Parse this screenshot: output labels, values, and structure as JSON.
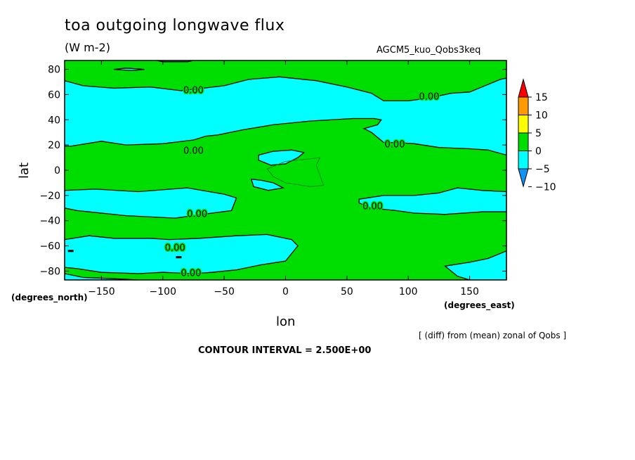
{
  "header": {
    "title": "toa outgoing longwave flux",
    "units": "(W m-2)",
    "run_name": "AGCM5_kuo_Qobs3keq"
  },
  "footer": {
    "x_axis_unit": "(degrees_east)",
    "y_axis_unit": "(degrees_north)",
    "operation_note": "[ (diff) from (mean) zonal of Qobs ]",
    "contour_interval": "CONTOUR INTERVAL = 2.500E+00"
  },
  "colors": {
    "blue": "#0f94f5",
    "cyan": "#00ffff",
    "green": "#00dd00",
    "yellow": "#ffff00",
    "orange": "#ff9b00",
    "red": "#ff0000"
  },
  "chart_data": {
    "type": "heatmap",
    "style": "filled contour map",
    "xlabel": "lon",
    "ylabel": "lat",
    "xlim": [
      -180,
      180
    ],
    "ylim": [
      -87,
      87
    ],
    "x_ticks": [
      -150,
      -100,
      -50,
      0,
      50,
      100,
      150
    ],
    "y_ticks": [
      80,
      60,
      40,
      20,
      0,
      -20,
      -40,
      -60,
      -80
    ],
    "contour_interval": 2.5,
    "colorbar": {
      "levels": [
        -10,
        -5,
        0,
        5,
        10,
        15
      ],
      "colors": [
        "#0f94f5",
        "#00ffff",
        "#00dd00",
        "#ffff00",
        "#ff9b00",
        "#ff0000"
      ],
      "position": "right"
    },
    "contour_labels": [
      {
        "text": "0.00",
        "lon": -75,
        "lat": 63
      },
      {
        "text": "0.00",
        "lon": 117,
        "lat": 58
      },
      {
        "text": "0.00",
        "lon": 89,
        "lat": 20
      },
      {
        "text": "0.00",
        "lon": -75,
        "lat": 15
      },
      {
        "text": "0.00",
        "lon": 71,
        "lat": -29
      },
      {
        "text": "0.00",
        "lon": -72,
        "lat": -35
      },
      {
        "text": "0.00",
        "lon": -90,
        "lat": -62
      },
      {
        "text": "0.00",
        "lon": -77,
        "lat": -82
      }
    ],
    "regions": [
      {
        "value_range": [
          0,
          2.5
        ],
        "fill": "green",
        "lon": [
          -180,
          180
        ],
        "lat": [
          -87,
          87
        ],
        "path": [
          [
            -180,
            87
          ],
          [
            180,
            87
          ],
          [
            180,
            -87
          ],
          [
            -180,
            -87
          ]
        ]
      },
      {
        "value_range": [
          -2.5,
          0
        ],
        "fill": "cyan",
        "path": [
          [
            -180,
            71
          ],
          [
            -165,
            67
          ],
          [
            -140,
            65
          ],
          [
            -110,
            66
          ],
          [
            -85,
            63
          ],
          [
            -50,
            67
          ],
          [
            -30,
            72
          ],
          [
            -5,
            74
          ],
          [
            25,
            71
          ],
          [
            50,
            66
          ],
          [
            70,
            61
          ],
          [
            80,
            55
          ],
          [
            100,
            55
          ],
          [
            115,
            57
          ],
          [
            135,
            61
          ],
          [
            150,
            62
          ],
          [
            160,
            66
          ],
          [
            175,
            72
          ],
          [
            180,
            73
          ],
          [
            180,
            12
          ],
          [
            165,
            16
          ],
          [
            150,
            17
          ],
          [
            125,
            18
          ],
          [
            105,
            21
          ],
          [
            90,
            22
          ],
          [
            80,
            22
          ],
          [
            70,
            30
          ],
          [
            64,
            33
          ],
          [
            75,
            36
          ],
          [
            78,
            40
          ],
          [
            72,
            41
          ],
          [
            55,
            41
          ],
          [
            20,
            39
          ],
          [
            -10,
            36
          ],
          [
            -35,
            32
          ],
          [
            -55,
            28
          ],
          [
            -65,
            27
          ],
          [
            -75,
            24
          ],
          [
            -100,
            21
          ],
          [
            -130,
            20
          ],
          [
            -150,
            23
          ],
          [
            -175,
            19
          ],
          [
            -180,
            19
          ]
        ]
      },
      {
        "value_range": [
          -2.5,
          0
        ],
        "fill": "cyan",
        "path": [
          [
            -180,
            -16
          ],
          [
            -155,
            -15
          ],
          [
            -120,
            -17
          ],
          [
            -80,
            -14
          ],
          [
            -50,
            -19
          ],
          [
            -40,
            -22
          ],
          [
            -44,
            -32
          ],
          [
            -60,
            -34
          ],
          [
            -90,
            -38
          ],
          [
            -130,
            -36
          ],
          [
            -170,
            -32
          ],
          [
            -180,
            -30
          ]
        ]
      },
      {
        "value_range": [
          -2.5,
          0
        ],
        "fill": "cyan",
        "path": [
          [
            60,
            -23
          ],
          [
            80,
            -20
          ],
          [
            105,
            -20
          ],
          [
            125,
            -18
          ],
          [
            140,
            -14
          ],
          [
            160,
            -16
          ],
          [
            180,
            -17
          ],
          [
            180,
            -33
          ],
          [
            160,
            -33
          ],
          [
            130,
            -35
          ],
          [
            105,
            -34
          ],
          [
            90,
            -32
          ],
          [
            70,
            -30
          ],
          [
            60,
            -26
          ]
        ]
      },
      {
        "value_range": [
          -2.5,
          0
        ],
        "fill": "cyan",
        "path": [
          [
            -180,
            -55
          ],
          [
            -160,
            -52
          ],
          [
            -140,
            -54
          ],
          [
            -110,
            -54
          ],
          [
            -95,
            -55
          ],
          [
            -70,
            -54
          ],
          [
            -40,
            -52
          ],
          [
            -15,
            -51
          ],
          [
            5,
            -55
          ],
          [
            10,
            -60
          ],
          [
            0,
            -72
          ],
          [
            -20,
            -75
          ],
          [
            -40,
            -79
          ],
          [
            -60,
            -81
          ],
          [
            -75,
            -82
          ],
          [
            -100,
            -81
          ],
          [
            -120,
            -82
          ],
          [
            -150,
            -81
          ],
          [
            -170,
            -78
          ],
          [
            -180,
            -77
          ]
        ]
      },
      {
        "value_range": [
          -2.5,
          0
        ],
        "fill": "cyan",
        "path": [
          [
            -180,
            -87
          ],
          [
            -180,
            -82
          ],
          [
            -165,
            -85
          ],
          [
            -140,
            -86
          ],
          [
            -120,
            -87
          ]
        ]
      },
      {
        "value_range": [
          -2.5,
          0
        ],
        "fill": "cyan",
        "path": [
          [
            130,
            -76
          ],
          [
            150,
            -73
          ],
          [
            165,
            -70
          ],
          [
            180,
            -64
          ],
          [
            180,
            -87
          ],
          [
            150,
            -87
          ],
          [
            140,
            -84
          ]
        ]
      },
      {
        "value_range": [
          -2.5,
          0
        ],
        "fill": "cyan",
        "path": [
          [
            -140,
            80
          ],
          [
            -125,
            79
          ],
          [
            -115,
            80
          ],
          [
            -130,
            81
          ]
        ]
      },
      {
        "value_range": [
          -2.5,
          0
        ],
        "fill": "cyan",
        "path": [
          [
            -105,
            87
          ],
          [
            -100,
            86
          ],
          [
            -80,
            86
          ],
          [
            -75,
            87
          ]
        ]
      },
      {
        "value_range": [
          -2.5,
          0
        ],
        "fill": "cyan",
        "path": [
          [
            -22,
            12
          ],
          [
            -10,
            15
          ],
          [
            5,
            16
          ],
          [
            15,
            14
          ],
          [
            10,
            10
          ],
          [
            0,
            5
          ],
          [
            -12,
            4
          ],
          [
            -22,
            8
          ]
        ]
      },
      {
        "value_range": [
          -2.5,
          0
        ],
        "fill": "cyan",
        "path": [
          [
            -28,
            -7
          ],
          [
            -20,
            -8
          ],
          [
            -10,
            -10
          ],
          [
            -2,
            -14
          ],
          [
            -14,
            -16
          ],
          [
            -26,
            -13
          ]
        ]
      }
    ],
    "thin_contours": [
      {
        "path": [
          [
            -15,
            1
          ],
          [
            0,
            7
          ],
          [
            20,
            9
          ],
          [
            28,
            10
          ],
          [
            25,
            4
          ],
          [
            31,
            -12
          ],
          [
            20,
            -13
          ],
          [
            0,
            -10
          ],
          [
            -10,
            -5
          ],
          [
            -15,
            1
          ]
        ]
      }
    ],
    "dark_marks": [
      {
        "lon": -87,
        "lat": -69
      },
      {
        "lon": -175,
        "lat": -64
      }
    ]
  }
}
